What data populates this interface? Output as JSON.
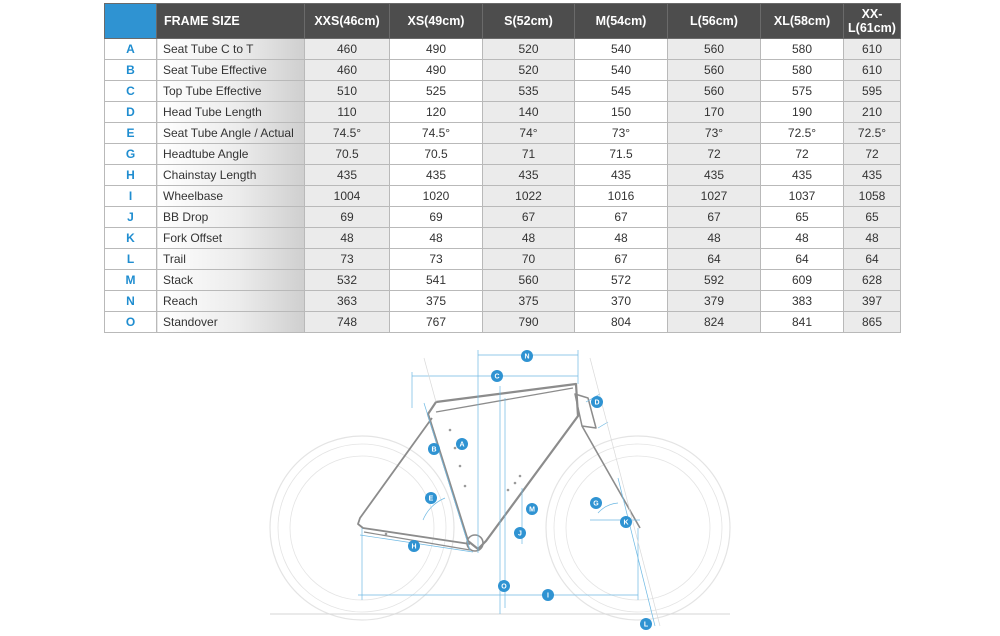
{
  "table": {
    "title": "FRAME SIZE",
    "sizes": [
      "XXS(46cm)",
      "XS(49cm)",
      "S(52cm)",
      "M(54cm)",
      "L(56cm)",
      "XL(58cm)",
      "XX-L(61cm)"
    ],
    "rows": [
      {
        "letter": "A",
        "label": "Seat Tube C to T",
        "values": [
          "460",
          "490",
          "520",
          "540",
          "560",
          "580",
          "610"
        ]
      },
      {
        "letter": "B",
        "label": "Seat Tube Effective",
        "values": [
          "460",
          "490",
          "520",
          "540",
          "560",
          "580",
          "610"
        ]
      },
      {
        "letter": "C",
        "label": "Top Tube Effective",
        "values": [
          "510",
          "525",
          "535",
          "545",
          "560",
          "575",
          "595"
        ]
      },
      {
        "letter": "D",
        "label": "Head Tube Length",
        "values": [
          "110",
          "120",
          "140",
          "150",
          "170",
          "190",
          "210"
        ]
      },
      {
        "letter": "E",
        "label": "Seat Tube Angle / Actual",
        "values": [
          "74.5°",
          "74.5°",
          "74°",
          "73°",
          "73°",
          "72.5°",
          "72.5°"
        ]
      },
      {
        "letter": "G",
        "label": "Headtube Angle",
        "values": [
          "70.5",
          "70.5",
          "71",
          "71.5",
          "72",
          "72",
          "72"
        ]
      },
      {
        "letter": "H",
        "label": "Chainstay Length",
        "values": [
          "435",
          "435",
          "435",
          "435",
          "435",
          "435",
          "435"
        ]
      },
      {
        "letter": "I",
        "label": "Wheelbase",
        "values": [
          "1004",
          "1020",
          "1022",
          "1016",
          "1027",
          "1037",
          "1058"
        ]
      },
      {
        "letter": "J",
        "label": "BB Drop",
        "values": [
          "69",
          "69",
          "67",
          "67",
          "67",
          "65",
          "65"
        ]
      },
      {
        "letter": "K",
        "label": "Fork Offset",
        "values": [
          "48",
          "48",
          "48",
          "48",
          "48",
          "48",
          "48"
        ]
      },
      {
        "letter": "L",
        "label": "Trail",
        "values": [
          "73",
          "73",
          "70",
          "67",
          "64",
          "64",
          "64"
        ]
      },
      {
        "letter": "M",
        "label": "Stack",
        "values": [
          "532",
          "541",
          "560",
          "572",
          "592",
          "609",
          "628"
        ]
      },
      {
        "letter": "N",
        "label": "Reach",
        "values": [
          "363",
          "375",
          "375",
          "370",
          "379",
          "383",
          "397"
        ]
      },
      {
        "letter": "O",
        "label": "Standover",
        "values": [
          "748",
          "767",
          "790",
          "804",
          "824",
          "841",
          "865"
        ]
      }
    ]
  },
  "diagram": {
    "accent": "#2f93d2",
    "tags": {
      "a": "A",
      "b": "B",
      "c": "C",
      "d": "D",
      "e": "E",
      "g": "G",
      "h": "H",
      "i": "I",
      "j": "J",
      "k": "K",
      "l": "L",
      "m": "M",
      "n": "N",
      "o": "O"
    }
  }
}
